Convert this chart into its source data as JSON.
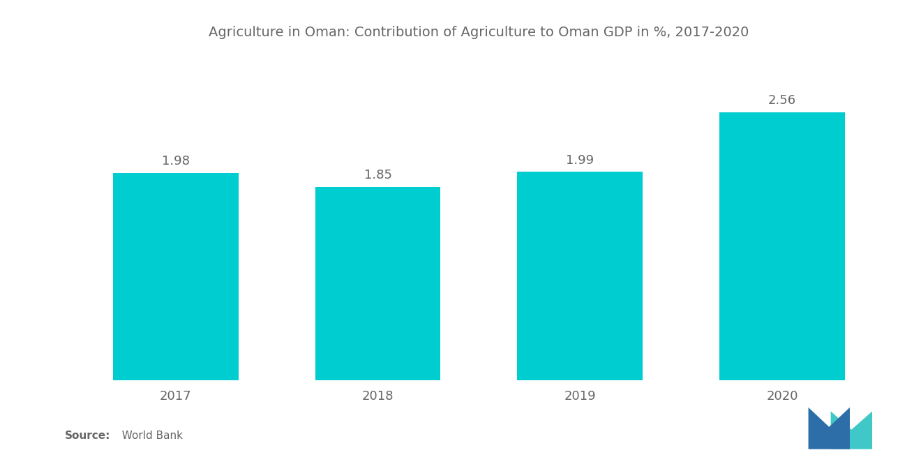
{
  "title": "Agriculture in Oman: Contribution of Agriculture to Oman GDP in %, 2017-2020",
  "categories": [
    "2017",
    "2018",
    "2019",
    "2020"
  ],
  "values": [
    1.98,
    1.85,
    1.99,
    2.56
  ],
  "bar_color": "#00CDD0",
  "background_color": "#ffffff",
  "source_bold": "Source:",
  "source_rest": "  World Bank",
  "title_fontsize": 14,
  "label_fontsize": 13,
  "tick_fontsize": 13,
  "source_fontsize": 11,
  "ylim": [
    0,
    3.1
  ],
  "bar_width": 0.62,
  "text_color": "#666666",
  "logo_blue": "#2D6EA8",
  "logo_teal": "#40C8C8"
}
